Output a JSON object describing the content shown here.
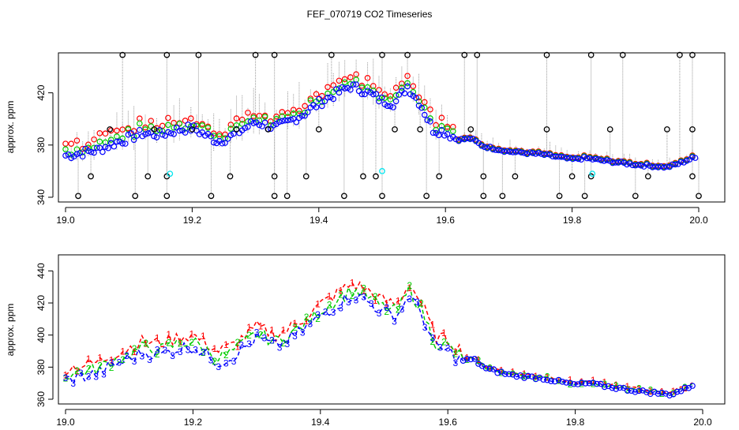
{
  "figure": {
    "title": "FEF_070719  CO2 Timeseries"
  },
  "colors": {
    "red": "#ff0000",
    "green": "#00cc00",
    "blue": "#0000ff",
    "black": "#000000",
    "cyan": "#00e5ee",
    "drop": "#999999"
  },
  "chart_data": [
    {
      "id": "top",
      "type": "scatter",
      "title": "",
      "xlabel": "",
      "ylabel": "approx. ppm",
      "xlim": [
        19.0,
        20.0
      ],
      "ylim": [
        340,
        450
      ],
      "xticks": [
        19.0,
        19.2,
        19.4,
        19.6,
        19.8,
        20.0
      ],
      "xtick_labels": [
        "19.0",
        "19.2",
        "19.4",
        "19.6",
        "19.8",
        "20.0"
      ],
      "yticks": [
        340,
        380,
        420
      ],
      "ytick_labels": [
        "340",
        "380",
        "420"
      ],
      "grid": false,
      "legend": "none",
      "series": [
        {
          "color": "blue",
          "marker": "circle",
          "base": [
            [
              19.0,
              372
            ],
            [
              19.05,
              376
            ],
            [
              19.08,
              382
            ],
            [
              19.1,
              385
            ],
            [
              19.12,
              389
            ],
            [
              19.15,
              388
            ],
            [
              19.18,
              392
            ],
            [
              19.2,
              393
            ],
            [
              19.22,
              388
            ],
            [
              19.24,
              383
            ],
            [
              19.26,
              386
            ],
            [
              19.28,
              392
            ],
            [
              19.3,
              398
            ],
            [
              19.33,
              393
            ],
            [
              19.35,
              397
            ],
            [
              19.38,
              405
            ],
            [
              19.4,
              412
            ],
            [
              19.43,
              420
            ],
            [
              19.45,
              425
            ],
            [
              19.47,
              422
            ],
            [
              19.5,
              414
            ],
            [
              19.52,
              412
            ],
            [
              19.54,
              425
            ],
            [
              19.56,
              412
            ],
            [
              19.58,
              392
            ],
            [
              19.6,
              390
            ],
            [
              19.62,
              384
            ],
            [
              19.64,
              385
            ],
            [
              19.66,
              379
            ],
            [
              19.7,
              375
            ],
            [
              19.75,
              373
            ],
            [
              19.8,
              369
            ],
            [
              19.82,
              370
            ],
            [
              19.85,
              368
            ],
            [
              19.9,
              365
            ],
            [
              19.95,
              363
            ],
            [
              19.97,
              366
            ],
            [
              19.99,
              370
            ]
          ]
        },
        {
          "color": "green",
          "marker": "circle",
          "offset": 4
        },
        {
          "color": "red",
          "marker": "circle",
          "offset": 8
        },
        {
          "color": "black",
          "marker": "circle",
          "spikes": [
            [
              19.09,
              449
            ],
            [
              19.16,
              449
            ],
            [
              19.21,
              449
            ],
            [
              19.3,
              449
            ],
            [
              19.33,
              449
            ],
            [
              19.42,
              449
            ],
            [
              19.5,
              449
            ],
            [
              19.54,
              449
            ],
            [
              19.63,
              449
            ],
            [
              19.65,
              449
            ],
            [
              19.76,
              449
            ],
            [
              19.83,
              449
            ],
            [
              19.88,
              449
            ],
            [
              19.97,
              449
            ],
            [
              19.99,
              449
            ],
            [
              19.02,
              341
            ],
            [
              19.11,
              341
            ],
            [
              19.16,
              341
            ],
            [
              19.23,
              341
            ],
            [
              19.33,
              341
            ],
            [
              19.35,
              341
            ],
            [
              19.44,
              341
            ],
            [
              19.5,
              341
            ],
            [
              19.57,
              341
            ],
            [
              19.66,
              341
            ],
            [
              19.69,
              341
            ],
            [
              19.78,
              341
            ],
            [
              19.82,
              341
            ],
            [
              19.9,
              341
            ],
            [
              20.0,
              341
            ],
            [
              19.04,
              356
            ],
            [
              19.13,
              356
            ],
            [
              19.16,
              356
            ],
            [
              19.26,
              356
            ],
            [
              19.33,
              356
            ],
            [
              19.38,
              356
            ],
            [
              19.47,
              356
            ],
            [
              19.49,
              356
            ],
            [
              19.59,
              356
            ],
            [
              19.66,
              356
            ],
            [
              19.71,
              356
            ],
            [
              19.8,
              356
            ],
            [
              19.83,
              356
            ],
            [
              19.92,
              356
            ],
            [
              19.99,
              356
            ],
            [
              19.07,
              392
            ],
            [
              19.14,
              392
            ],
            [
              19.2,
              392
            ],
            [
              19.27,
              392
            ],
            [
              19.32,
              392
            ],
            [
              19.4,
              392
            ],
            [
              19.52,
              392
            ],
            [
              19.56,
              392
            ],
            [
              19.64,
              392
            ],
            [
              19.76,
              392
            ],
            [
              19.86,
              392
            ],
            [
              19.95,
              392
            ],
            [
              19.99,
              392
            ]
          ]
        },
        {
          "color": "cyan",
          "marker": "circle",
          "points": [
            [
              19.165,
              358
            ],
            [
              19.5,
              360
            ],
            [
              19.832,
              358
            ]
          ]
        }
      ]
    },
    {
      "id": "bottom",
      "type": "line",
      "title": "",
      "xlabel": "",
      "ylabel": "approx. ppm",
      "xlim": [
        19.0,
        20.0
      ],
      "ylim": [
        360,
        450
      ],
      "xticks": [
        19.0,
        19.2,
        19.4,
        19.6,
        19.8,
        20.0
      ],
      "xtick_labels": [
        "19.0",
        "19.2",
        "19.4",
        "19.6",
        "19.8",
        "20.0"
      ],
      "yticks": [
        360,
        380,
        400,
        420,
        440
      ],
      "ytick_labels": [
        "360",
        "380",
        "400",
        "420",
        "440"
      ],
      "grid": false,
      "legend": "none",
      "series": [
        {
          "color": "red",
          "label": "1",
          "style": "dash"
        },
        {
          "color": "green",
          "label": "2",
          "style": "dash"
        },
        {
          "color": "blue",
          "label": "3",
          "style": "dash"
        }
      ]
    }
  ]
}
